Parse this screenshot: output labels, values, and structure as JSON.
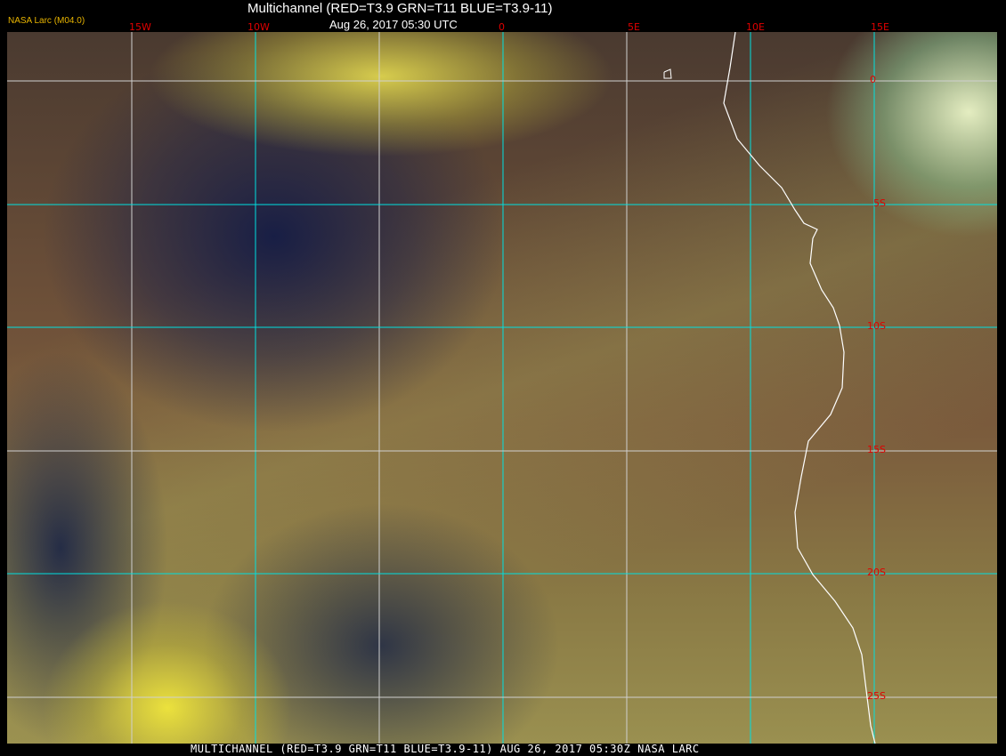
{
  "header": {
    "title": "Multichannel (RED=T3.9 GRN=T11 BLUE=T3.9-11)",
    "datetime": "Aug 26, 2017 05:30 UTC",
    "version": "NASA Larc (M04.0)"
  },
  "longitude_labels": [
    "15W",
    "10W",
    "0",
    "5E",
    "10E",
    "15E"
  ],
  "latitude_labels": [
    "0",
    "5S",
    "10S",
    "15S",
    "20S",
    "25S"
  ],
  "footer": "MULTICHANNEL (RED=T3.9 GRN=T11 BLUE=T3.9-11) AUG 26, 2017 05:30Z   NASA LARC",
  "colors": {
    "grid_cyan": "#00e0e0",
    "grid_white": "#d0d0d0",
    "label_red": "#e00000",
    "coastline": "#ffffff"
  }
}
